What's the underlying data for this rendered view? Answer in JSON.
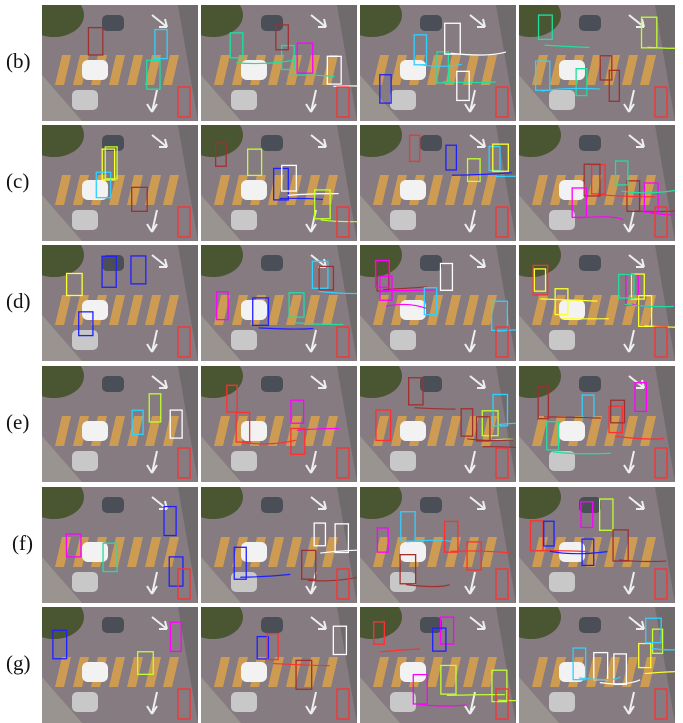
{
  "figure": {
    "rows": [
      {
        "label": "(b)"
      },
      {
        "label": "(c)"
      },
      {
        "label": "(d)"
      },
      {
        "label": "(e)"
      },
      {
        "label": "(f)"
      },
      {
        "label": "(g)"
      }
    ]
  }
}
